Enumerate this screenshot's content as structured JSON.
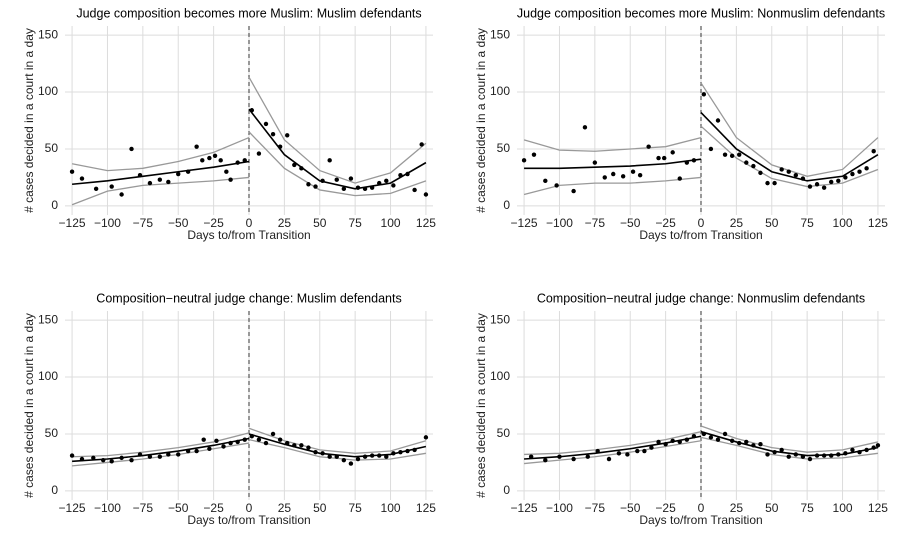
{
  "chart_data": [
    {
      "type": "scatter",
      "title": "Judge composition becomes more Muslim: Muslim defendants",
      "x_label": "Days to/from Transition",
      "y_label": "# cases decided in a court in a day",
      "xlim": [
        -130,
        130
      ],
      "ylim": [
        -8,
        158
      ],
      "xticks": [
        {
          "value": -125,
          "label": "−125"
        },
        {
          "value": -100,
          "label": "−100"
        },
        {
          "value": -75,
          "label": "−75"
        },
        {
          "value": -50,
          "label": "−50"
        },
        {
          "value": -25,
          "label": "−25"
        },
        0,
        25,
        50,
        75,
        100,
        125
      ],
      "yticks": [
        0,
        50,
        100,
        150
      ],
      "grid": true,
      "cutoff": 0,
      "point_color": "#000000",
      "fit_color": "#000000",
      "band_color": "#999999",
      "points": {
        "x": [
          -125,
          -118,
          -108,
          -97,
          -90,
          -83,
          -77,
          -70,
          -63,
          -57,
          -50,
          -43,
          -37,
          -33,
          -28,
          -24,
          -20,
          -16,
          -13,
          -8,
          -3,
          2,
          7,
          12,
          17,
          22,
          27,
          32,
          37,
          42,
          47,
          52,
          57,
          62,
          67,
          72,
          77,
          82,
          87,
          92,
          97,
          102,
          107,
          112,
          117,
          122,
          125
        ],
        "y": [
          30,
          24,
          15,
          17,
          10,
          50,
          27,
          20,
          23,
          21,
          28,
          30,
          52,
          40,
          42,
          44,
          40,
          30,
          23,
          38,
          40,
          84,
          46,
          72,
          63,
          52,
          62,
          36,
          33,
          19,
          17,
          22,
          40,
          23,
          15,
          24,
          16,
          15,
          16,
          20,
          22,
          18,
          27,
          28,
          14,
          54,
          10
        ]
      },
      "fits": [
        {
          "x": [
            -125,
            -100,
            -75,
            -50,
            -25,
            0
          ],
          "y": [
            19,
            22,
            26,
            30,
            34,
            39
          ],
          "lower": [
            1,
            13,
            18,
            20,
            22,
            25
          ],
          "upper": [
            37,
            31,
            33,
            39,
            47,
            60
          ]
        },
        {
          "x": [
            0,
            25,
            50,
            75,
            100,
            125
          ],
          "y": [
            85,
            45,
            22,
            15,
            20,
            38
          ],
          "lower": [
            65,
            33,
            14,
            9,
            11,
            22
          ],
          "upper": [
            113,
            58,
            31,
            20,
            29,
            55
          ]
        }
      ]
    },
    {
      "type": "scatter",
      "title": "Judge composition becomes more Muslim: Nonmuslim defendants",
      "x_label": "Days to/from Transition",
      "y_label": "# cases decided in a court in a day",
      "xlim": [
        -130,
        130
      ],
      "ylim": [
        -8,
        158
      ],
      "xticks": [
        {
          "value": -125,
          "label": "−125"
        },
        {
          "value": -100,
          "label": "−100"
        },
        {
          "value": -75,
          "label": "−75"
        },
        {
          "value": -50,
          "label": "−50"
        },
        {
          "value": -25,
          "label": "−25"
        },
        0,
        25,
        50,
        75,
        100,
        125
      ],
      "yticks": [
        0,
        50,
        100,
        150
      ],
      "grid": true,
      "cutoff": 0,
      "point_color": "#000000",
      "fit_color": "#000000",
      "band_color": "#999999",
      "points": {
        "x": [
          -125,
          -118,
          -110,
          -102,
          -90,
          -82,
          -75,
          -68,
          -62,
          -55,
          -48,
          -43,
          -37,
          -30,
          -26,
          -20,
          -15,
          -10,
          -5,
          2,
          7,
          12,
          17,
          22,
          27,
          32,
          37,
          42,
          47,
          52,
          57,
          62,
          67,
          72,
          77,
          82,
          87,
          92,
          97,
          102,
          107,
          112,
          117,
          122
        ],
        "y": [
          40,
          45,
          22,
          18,
          13,
          69,
          38,
          25,
          28,
          26,
          30,
          27,
          52,
          42,
          42,
          47,
          24,
          38,
          40,
          98,
          50,
          75,
          45,
          44,
          45,
          38,
          35,
          29,
          20,
          20,
          32,
          30,
          27,
          24,
          17,
          19,
          16,
          21,
          22,
          25,
          28,
          30,
          33,
          48
        ]
      },
      "fits": [
        {
          "x": [
            -125,
            -100,
            -75,
            -50,
            -25,
            0
          ],
          "y": [
            33,
            33,
            34,
            35,
            37,
            41
          ],
          "lower": [
            10,
            18,
            20,
            20,
            22,
            25
          ],
          "upper": [
            58,
            49,
            48,
            50,
            52,
            60
          ]
        },
        {
          "x": [
            0,
            25,
            50,
            75,
            100,
            125
          ],
          "y": [
            82,
            50,
            30,
            22,
            26,
            45
          ],
          "lower": [
            70,
            42,
            24,
            17,
            20,
            32
          ],
          "upper": [
            108,
            60,
            36,
            26,
            32,
            60
          ]
        }
      ]
    },
    {
      "type": "scatter",
      "title": "Composition−neutral judge change: Muslim defendants",
      "x_label": "Days to/from Transition",
      "y_label": "# cases decided in a court in a day",
      "xlim": [
        -130,
        130
      ],
      "ylim": [
        -8,
        158
      ],
      "xticks": [
        {
          "value": -125,
          "label": "−125"
        },
        {
          "value": -100,
          "label": "−100"
        },
        {
          "value": -75,
          "label": "−75"
        },
        {
          "value": -50,
          "label": "−50"
        },
        {
          "value": -25,
          "label": "−25"
        },
        0,
        25,
        50,
        75,
        100,
        125
      ],
      "yticks": [
        0,
        50,
        100,
        150
      ],
      "grid": true,
      "cutoff": 0,
      "point_color": "#000000",
      "fit_color": "#000000",
      "band_color": "#999999",
      "points": {
        "x": [
          -125,
          -118,
          -110,
          -103,
          -97,
          -90,
          -83,
          -77,
          -70,
          -63,
          -57,
          -50,
          -43,
          -37,
          -32,
          -28,
          -23,
          -18,
          -13,
          -8,
          -3,
          2,
          7,
          12,
          17,
          22,
          27,
          32,
          37,
          42,
          47,
          52,
          57,
          62,
          67,
          72,
          77,
          82,
          87,
          92,
          97,
          102,
          107,
          112,
          117,
          125
        ],
        "y": [
          31,
          28,
          29,
          27,
          26,
          29,
          27,
          32,
          30,
          30,
          32,
          32,
          35,
          35,
          45,
          37,
          44,
          39,
          42,
          43,
          45,
          48,
          45,
          42,
          50,
          45,
          42,
          40,
          40,
          38,
          34,
          33,
          30,
          30,
          27,
          24,
          28,
          30,
          31,
          31,
          30,
          33,
          34,
          35,
          36,
          47
        ]
      },
      "fits": [
        {
          "x": [
            -125,
            -100,
            -75,
            -50,
            -25,
            0
          ],
          "y": [
            26,
            28,
            31,
            35,
            40,
            46
          ],
          "lower": [
            22,
            25,
            28,
            32,
            37,
            42
          ],
          "upper": [
            30,
            31,
            34,
            38,
            43,
            51
          ]
        },
        {
          "x": [
            0,
            25,
            50,
            75,
            100,
            125
          ],
          "y": [
            50,
            41,
            33,
            30,
            32,
            39
          ],
          "lower": [
            45,
            38,
            30,
            27,
            28,
            33
          ],
          "upper": [
            55,
            44,
            36,
            33,
            35,
            44
          ]
        }
      ]
    },
    {
      "type": "scatter",
      "title": "Composition−neutral judge change: Nonmuslim defendants",
      "x_label": "Days to/from Transition",
      "y_label": "# cases decided in a court in a day",
      "xlim": [
        -130,
        130
      ],
      "ylim": [
        -8,
        158
      ],
      "xticks": [
        {
          "value": -125,
          "label": "−125"
        },
        {
          "value": -100,
          "label": "−100"
        },
        {
          "value": -75,
          "label": "−75"
        },
        {
          "value": -50,
          "label": "−50"
        },
        {
          "value": -25,
          "label": "−25"
        },
        0,
        25,
        50,
        75,
        100,
        125
      ],
      "yticks": [
        0,
        50,
        100,
        150
      ],
      "grid": true,
      "cutoff": 0,
      "point_color": "#000000",
      "fit_color": "#000000",
      "band_color": "#999999",
      "points": {
        "x": [
          -120,
          -110,
          -100,
          -90,
          -80,
          -73,
          -65,
          -58,
          -52,
          -45,
          -40,
          -35,
          -30,
          -25,
          -20,
          -15,
          -10,
          -5,
          2,
          7,
          12,
          17,
          22,
          27,
          32,
          37,
          42,
          47,
          52,
          57,
          62,
          67,
          72,
          77,
          82,
          87,
          92,
          97,
          102,
          107,
          112,
          117,
          122,
          125
        ],
        "y": [
          30,
          27,
          30,
          28,
          30,
          35,
          28,
          33,
          32,
          35,
          35,
          38,
          43,
          41,
          44,
          43,
          45,
          48,
          50,
          47,
          45,
          50,
          44,
          42,
          43,
          40,
          41,
          32,
          34,
          36,
          30,
          32,
          30,
          28,
          31,
          31,
          31,
          32,
          33,
          36,
          34,
          36,
          38,
          40
        ]
      },
      "fits": [
        {
          "x": [
            -125,
            -100,
            -75,
            -50,
            -25,
            0
          ],
          "y": [
            28,
            30,
            33,
            37,
            42,
            48
          ],
          "lower": [
            24,
            27,
            30,
            34,
            39,
            44
          ],
          "upper": [
            32,
            33,
            36,
            40,
            45,
            52
          ]
        },
        {
          "x": [
            0,
            25,
            50,
            75,
            100,
            125
          ],
          "y": [
            52,
            43,
            35,
            31,
            32,
            38
          ],
          "lower": [
            47,
            40,
            32,
            28,
            29,
            33
          ],
          "upper": [
            57,
            46,
            38,
            34,
            36,
            43
          ]
        }
      ]
    }
  ]
}
